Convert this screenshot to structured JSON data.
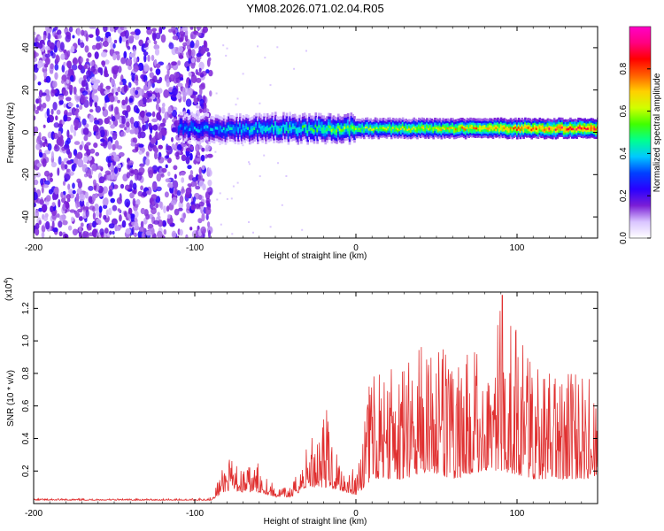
{
  "title": "YM08.2026.071.02.04.R05",
  "chart_data": [
    {
      "type": "heatmap",
      "xlabel": "Height of straight line (km)",
      "ylabel": "Frequency (Hz)",
      "xlim": [
        -200,
        150
      ],
      "ylim": [
        -50,
        50
      ],
      "xticks": [
        -200,
        -100,
        0,
        100
      ],
      "yticks": [
        -40,
        -20,
        0,
        20,
        40
      ],
      "colorbar": {
        "label": "Normalized spectral amplitude",
        "range": [
          0,
          1
        ],
        "ticks": [
          0.0,
          0.2,
          0.4,
          0.6,
          0.8
        ],
        "colors": [
          "#ffffff",
          "#d9c4ff",
          "#7a1ed6",
          "#2a00ff",
          "#0040ff",
          "#00c8ff",
          "#00ff90",
          "#40ff00",
          "#d0ff00",
          "#ffd000",
          "#ff6000",
          "#ff0000",
          "#ff0080",
          "#ff00c8"
        ]
      },
      "regions": [
        {
          "name": "noise",
          "x": [
            -200,
            -90
          ],
          "y": [
            -50,
            50
          ],
          "amplitude": 0.25
        },
        {
          "name": "signal band",
          "x": [
            -110,
            150
          ],
          "center_freq": 2,
          "half_width": 5,
          "amplitude_start": 0.35,
          "amplitude_end": 0.9
        }
      ]
    },
    {
      "type": "line",
      "xlabel": "Height of straight line (km)",
      "ylabel": "SNR (10 * v/v)",
      "multiplier": "(x10",
      "multiplier_exp": "4",
      "multiplier_close": ")",
      "xlim": [
        -200,
        150
      ],
      "ylim": [
        0,
        1.3
      ],
      "xticks": [
        -200,
        -100,
        0,
        100
      ],
      "yticks": [
        0.2,
        0.4,
        0.6,
        0.8,
        1.0,
        1.2
      ],
      "color": "#e03030",
      "envelope": [
        {
          "x": -200,
          "base": 0.02,
          "peak": 0.03
        },
        {
          "x": -100,
          "base": 0.02,
          "peak": 0.03
        },
        {
          "x": -90,
          "base": 0.02,
          "peak": 0.04
        },
        {
          "x": -80,
          "base": 0.08,
          "peak": 0.28
        },
        {
          "x": -70,
          "base": 0.07,
          "peak": 0.22
        },
        {
          "x": -60,
          "base": 0.07,
          "peak": 0.25
        },
        {
          "x": -50,
          "base": 0.04,
          "peak": 0.1
        },
        {
          "x": -40,
          "base": 0.04,
          "peak": 0.1
        },
        {
          "x": -30,
          "base": 0.1,
          "peak": 0.38
        },
        {
          "x": -20,
          "base": 0.1,
          "peak": 0.65
        },
        {
          "x": -10,
          "base": 0.08,
          "peak": 0.3
        },
        {
          "x": 0,
          "base": 0.05,
          "peak": 0.2
        },
        {
          "x": 10,
          "base": 0.15,
          "peak": 0.9
        },
        {
          "x": 30,
          "base": 0.15,
          "peak": 0.85
        },
        {
          "x": 45,
          "base": 0.2,
          "peak": 1.05
        },
        {
          "x": 60,
          "base": 0.15,
          "peak": 0.9
        },
        {
          "x": 80,
          "base": 0.2,
          "peak": 0.95
        },
        {
          "x": 91,
          "base": 0.2,
          "peak": 1.28
        },
        {
          "x": 110,
          "base": 0.15,
          "peak": 0.85
        },
        {
          "x": 130,
          "base": 0.15,
          "peak": 0.85
        },
        {
          "x": 150,
          "base": 0.15,
          "peak": 0.75
        }
      ]
    }
  ]
}
